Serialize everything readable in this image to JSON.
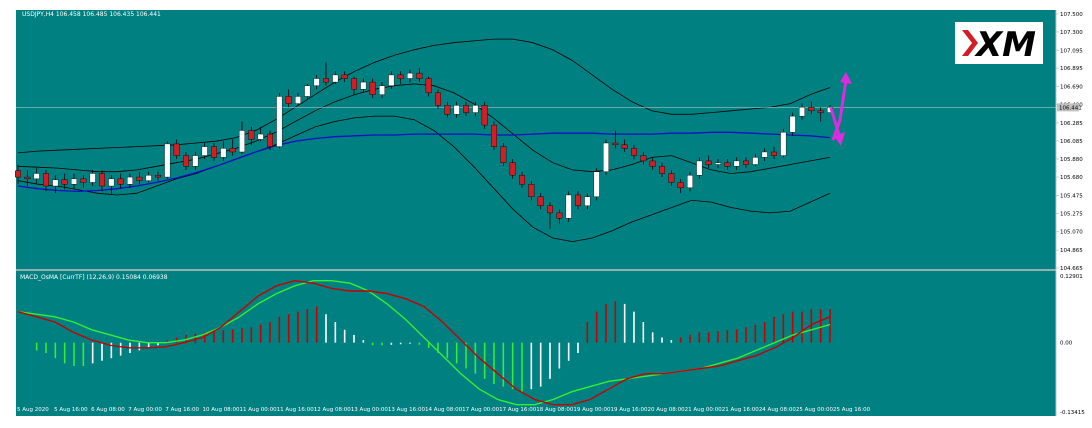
{
  "chart_data": [
    {
      "type": "candlestick",
      "title": "USDJPY,H4  106.458 106.485 106.435 106.441",
      "indicators": [
        "Bollinger Bands",
        "Moving Average (blue)"
      ],
      "ylim": [
        104.665,
        107.5
      ],
      "yticks": [
        "107.500",
        "107.300",
        "107.095",
        "106.895",
        "106.690",
        "106.490",
        "106.285",
        "106.085",
        "105.880",
        "105.680",
        "105.475",
        "105.275",
        "105.070",
        "104.865",
        "104.665"
      ],
      "current_price_label": "106.441",
      "xticks": [
        "5 Aug 2020",
        "5 Aug 16:00",
        "6 Aug 08:00",
        "7 Aug 00:00",
        "7 Aug 16:00",
        "10 Aug 08:00",
        "11 Aug 00:00",
        "11 Aug 16:00",
        "12 Aug 08:00",
        "13 Aug 00:00",
        "13 Aug 16:00",
        "14 Aug 08:00",
        "17 Aug 00:00",
        "17 Aug 16:00",
        "18 Aug 08:00",
        "19 Aug 00:00",
        "19 Aug 16:00",
        "20 Aug 08:00",
        "21 Aug 00:00",
        "21 Aug 16:00",
        "24 Aug 08:00",
        "25 Aug 00:00",
        "25 Aug 16:00"
      ],
      "candles": [
        [
          105.75,
          105.68,
          105.82,
          105.6
        ],
        [
          105.68,
          105.66,
          105.76,
          105.58
        ],
        [
          105.66,
          105.72,
          105.78,
          105.6
        ],
        [
          105.72,
          105.58,
          105.76,
          105.52
        ],
        [
          105.58,
          105.65,
          105.7,
          105.5
        ],
        [
          105.65,
          105.6,
          105.72,
          105.54
        ],
        [
          105.6,
          105.66,
          105.72,
          105.55
        ],
        [
          105.66,
          105.62,
          105.7,
          105.56
        ],
        [
          105.62,
          105.72,
          105.76,
          105.58
        ],
        [
          105.72,
          105.58,
          105.76,
          105.52
        ],
        [
          105.58,
          105.66,
          105.7,
          105.48
        ],
        [
          105.66,
          105.6,
          105.72,
          105.55
        ],
        [
          105.6,
          105.68,
          105.72,
          105.56
        ],
        [
          105.68,
          105.64,
          105.74,
          105.6
        ],
        [
          105.64,
          105.7,
          105.74,
          105.62
        ],
        [
          105.7,
          105.68,
          105.74,
          105.64
        ],
        [
          105.68,
          106.05,
          106.08,
          105.66
        ],
        [
          106.05,
          105.92,
          106.1,
          105.88
        ],
        [
          105.92,
          105.8,
          105.96,
          105.76
        ],
        [
          105.8,
          105.92,
          105.96,
          105.76
        ],
        [
          105.92,
          106.02,
          106.06,
          105.88
        ],
        [
          106.02,
          105.9,
          106.06,
          105.86
        ],
        [
          105.9,
          106.0,
          106.08,
          105.86
        ],
        [
          106.0,
          105.96,
          106.1,
          105.92
        ],
        [
          105.96,
          106.2,
          106.3,
          105.94
        ],
        [
          106.2,
          106.1,
          106.24,
          106.04
        ],
        [
          106.1,
          106.16,
          106.24,
          106.08
        ],
        [
          106.16,
          106.02,
          106.2,
          105.98
        ],
        [
          106.02,
          106.58,
          106.62,
          106.0
        ],
        [
          106.58,
          106.5,
          106.66,
          106.46
        ],
        [
          106.5,
          106.58,
          106.62,
          106.48
        ],
        [
          106.58,
          106.7,
          106.72,
          106.54
        ],
        [
          106.7,
          106.78,
          106.82,
          106.66
        ],
        [
          106.78,
          106.74,
          106.96,
          106.7
        ],
        [
          106.74,
          106.82,
          106.86,
          106.72
        ],
        [
          106.82,
          106.78,
          106.86,
          106.74
        ],
        [
          106.78,
          106.66,
          106.8,
          106.6
        ],
        [
          106.66,
          106.74,
          106.78,
          106.62
        ],
        [
          106.74,
          106.6,
          106.78,
          106.56
        ],
        [
          106.6,
          106.7,
          106.74,
          106.56
        ],
        [
          106.7,
          106.82,
          106.86,
          106.66
        ],
        [
          106.82,
          106.78,
          106.86,
          106.72
        ],
        [
          106.78,
          106.84,
          106.88,
          106.74
        ],
        [
          106.84,
          106.78,
          106.9,
          106.74
        ],
        [
          106.78,
          106.62,
          106.8,
          106.58
        ],
        [
          106.62,
          106.48,
          106.66,
          106.44
        ],
        [
          106.48,
          106.38,
          106.52,
          106.34
        ],
        [
          106.38,
          106.48,
          106.52,
          106.34
        ],
        [
          106.48,
          106.4,
          106.52,
          106.36
        ],
        [
          106.4,
          106.48,
          106.52,
          106.36
        ],
        [
          106.48,
          106.26,
          106.52,
          106.22
        ],
        [
          106.26,
          106.02,
          106.3,
          105.98
        ],
        [
          106.02,
          105.84,
          106.06,
          105.8
        ],
        [
          105.84,
          105.7,
          105.88,
          105.66
        ],
        [
          105.7,
          105.6,
          105.74,
          105.56
        ],
        [
          105.6,
          105.46,
          105.64,
          105.42
        ],
        [
          105.46,
          105.36,
          105.5,
          105.32
        ],
        [
          105.36,
          105.28,
          105.4,
          105.1
        ],
        [
          105.28,
          105.22,
          105.32,
          105.16
        ],
        [
          105.22,
          105.48,
          105.52,
          105.18
        ],
        [
          105.48,
          105.36,
          105.52,
          105.32
        ],
        [
          105.36,
          105.46,
          105.5,
          105.32
        ],
        [
          105.46,
          105.74,
          105.78,
          105.42
        ],
        [
          105.74,
          106.06,
          106.1,
          105.7
        ],
        [
          106.06,
          106.04,
          106.2,
          106.0
        ],
        [
          106.04,
          106.0,
          106.1,
          105.96
        ],
        [
          106.0,
          105.92,
          106.04,
          105.88
        ],
        [
          105.92,
          105.86,
          105.96,
          105.82
        ],
        [
          105.86,
          105.8,
          105.9,
          105.76
        ],
        [
          105.8,
          105.72,
          105.84,
          105.68
        ],
        [
          105.72,
          105.62,
          105.76,
          105.58
        ],
        [
          105.62,
          105.56,
          105.66,
          105.5
        ],
        [
          105.56,
          105.7,
          105.74,
          105.52
        ],
        [
          105.7,
          105.86,
          105.9,
          105.66
        ],
        [
          105.86,
          105.82,
          105.92,
          105.78
        ],
        [
          105.82,
          105.84,
          105.88,
          105.78
        ],
        [
          105.84,
          105.8,
          105.88,
          105.76
        ],
        [
          105.8,
          105.86,
          105.9,
          105.76
        ],
        [
          105.86,
          105.82,
          105.9,
          105.78
        ],
        [
          105.82,
          105.9,
          105.94,
          105.8
        ],
        [
          105.9,
          105.96,
          106.0,
          105.86
        ],
        [
          105.96,
          105.92,
          106.02,
          105.88
        ],
        [
          105.92,
          106.18,
          106.22,
          105.9
        ],
        [
          106.18,
          106.36,
          106.4,
          106.14
        ],
        [
          106.36,
          106.46,
          106.5,
          106.32
        ],
        [
          106.46,
          106.42,
          106.52,
          106.38
        ],
        [
          106.42,
          106.4,
          106.46,
          106.3
        ],
        [
          106.4,
          106.458,
          106.485,
          106.435
        ]
      ],
      "bb_upper": [
        105.95,
        105.97,
        105.98,
        105.99,
        106.0,
        106.01,
        106.02,
        106.03,
        106.04,
        106.06,
        106.08,
        106.12,
        106.2,
        106.32,
        106.46,
        106.6,
        106.74,
        106.86,
        106.96,
        107.04,
        107.1,
        107.15,
        107.18,
        107.2,
        107.22,
        107.22,
        107.18,
        107.1,
        106.98,
        106.82,
        106.66,
        106.52,
        106.42,
        106.38,
        106.38,
        106.4,
        106.42,
        106.44,
        106.46,
        106.5,
        106.6,
        106.68
      ],
      "bb_middle": [
        105.8,
        105.79,
        105.78,
        105.76,
        105.74,
        105.74,
        105.76,
        105.8,
        105.84,
        105.88,
        105.94,
        106.0,
        106.08,
        106.18,
        106.3,
        106.42,
        106.52,
        106.6,
        106.66,
        106.7,
        106.72,
        106.7,
        106.62,
        106.5,
        106.34,
        106.16,
        105.98,
        105.84,
        105.76,
        105.74,
        105.76,
        105.82,
        105.9,
        105.92,
        105.84,
        105.76,
        105.72,
        105.74,
        105.78,
        105.82,
        105.86,
        105.9
      ],
      "bb_lower": [
        105.64,
        105.6,
        105.58,
        105.54,
        105.5,
        105.48,
        105.5,
        105.58,
        105.66,
        105.72,
        105.8,
        105.88,
        105.96,
        106.04,
        106.14,
        106.24,
        106.3,
        106.34,
        106.36,
        106.36,
        106.32,
        106.2,
        106.02,
        105.8,
        105.56,
        105.32,
        105.12,
        105.0,
        104.96,
        105.0,
        105.08,
        105.18,
        105.26,
        105.34,
        105.42,
        105.4,
        105.34,
        105.3,
        105.28,
        105.3,
        105.4,
        105.5
      ],
      "ma": [
        105.58,
        105.55,
        105.53,
        105.52,
        105.53,
        105.55,
        105.58,
        105.62,
        105.67,
        105.73,
        105.8,
        105.88,
        105.96,
        106.03,
        106.08,
        106.11,
        106.13,
        106.14,
        106.15,
        106.15,
        106.16,
        106.16,
        106.16,
        106.16,
        106.15,
        106.15,
        106.16,
        106.17,
        106.17,
        106.17,
        106.16,
        106.16,
        106.16,
        106.17,
        106.17,
        106.18,
        106.18,
        106.17,
        106.16,
        106.15,
        106.14,
        106.12
      ]
    },
    {
      "type": "histogram_with_lines",
      "title": "MACD_OsMA [CurrTF] (12,26,9) 0.15084 0.06938",
      "ylim": [
        -0.13415,
        0.12901
      ],
      "yticks": [
        "0.12901",
        "0.00",
        "-0.13415"
      ],
      "histogram": [
        0.0,
        0.0,
        -0.015,
        -0.02,
        -0.03,
        -0.04,
        -0.045,
        -0.045,
        -0.04,
        -0.035,
        -0.03,
        -0.025,
        -0.02,
        -0.015,
        -0.01,
        -0.005,
        0.005,
        0.01,
        0.015,
        0.018,
        0.02,
        0.022,
        0.024,
        0.026,
        0.028,
        0.03,
        0.035,
        0.04,
        0.05,
        0.055,
        0.06,
        0.065,
        0.07,
        0.055,
        0.04,
        0.025,
        0.015,
        0.005,
        -0.005,
        -0.005,
        -0.004,
        -0.003,
        -0.002,
        -0.004,
        -0.01,
        -0.02,
        -0.03,
        -0.04,
        -0.05,
        -0.06,
        -0.07,
        -0.08,
        -0.085,
        -0.09,
        -0.095,
        -0.09,
        -0.085,
        -0.07,
        -0.05,
        -0.035,
        -0.02,
        0.04,
        0.06,
        0.075,
        0.08,
        0.075,
        0.06,
        0.04,
        0.02,
        0.01,
        0.005,
        0.01,
        0.015,
        0.02,
        0.02,
        0.022,
        0.024,
        0.026,
        0.03,
        0.035,
        0.04,
        0.05,
        0.055,
        0.06,
        0.06,
        0.065,
        0.065,
        0.065
      ],
      "macd": [
        0.06,
        0.05,
        0.04,
        0.02,
        0.005,
        -0.005,
        -0.01,
        -0.01,
        -0.008,
        0.0,
        0.01,
        0.03,
        0.06,
        0.09,
        0.11,
        0.12,
        0.115,
        0.105,
        0.1,
        0.1,
        0.095,
        0.085,
        0.07,
        0.04,
        0.005,
        -0.03,
        -0.06,
        -0.09,
        -0.11,
        -0.12,
        -0.12,
        -0.11,
        -0.09,
        -0.07,
        -0.06,
        -0.06,
        -0.055,
        -0.05,
        -0.045,
        -0.035,
        -0.025,
        -0.01,
        0.01,
        0.035,
        0.05
      ],
      "signal": [
        0.06,
        0.055,
        0.05,
        0.04,
        0.025,
        0.015,
        0.005,
        0.0,
        0.0,
        0.005,
        0.015,
        0.03,
        0.05,
        0.075,
        0.095,
        0.11,
        0.12,
        0.12,
        0.115,
        0.1,
        0.075,
        0.045,
        0.01,
        -0.025,
        -0.06,
        -0.09,
        -0.11,
        -0.12,
        -0.12,
        -0.11,
        -0.095,
        -0.085,
        -0.075,
        -0.07,
        -0.065,
        -0.06,
        -0.055,
        -0.05,
        -0.04,
        -0.03,
        -0.015,
        0.0,
        0.015,
        0.025,
        0.035
      ]
    }
  ],
  "colors": {
    "background": "#008080",
    "bull": "#ffffff",
    "bear": "#d21f26",
    "bands": "#000000",
    "ma": "#1010c8",
    "macd_line": "#c80000",
    "signal_line": "#33ee33",
    "arrows": "#e02ae0"
  },
  "logo": {
    "text": "XM"
  }
}
